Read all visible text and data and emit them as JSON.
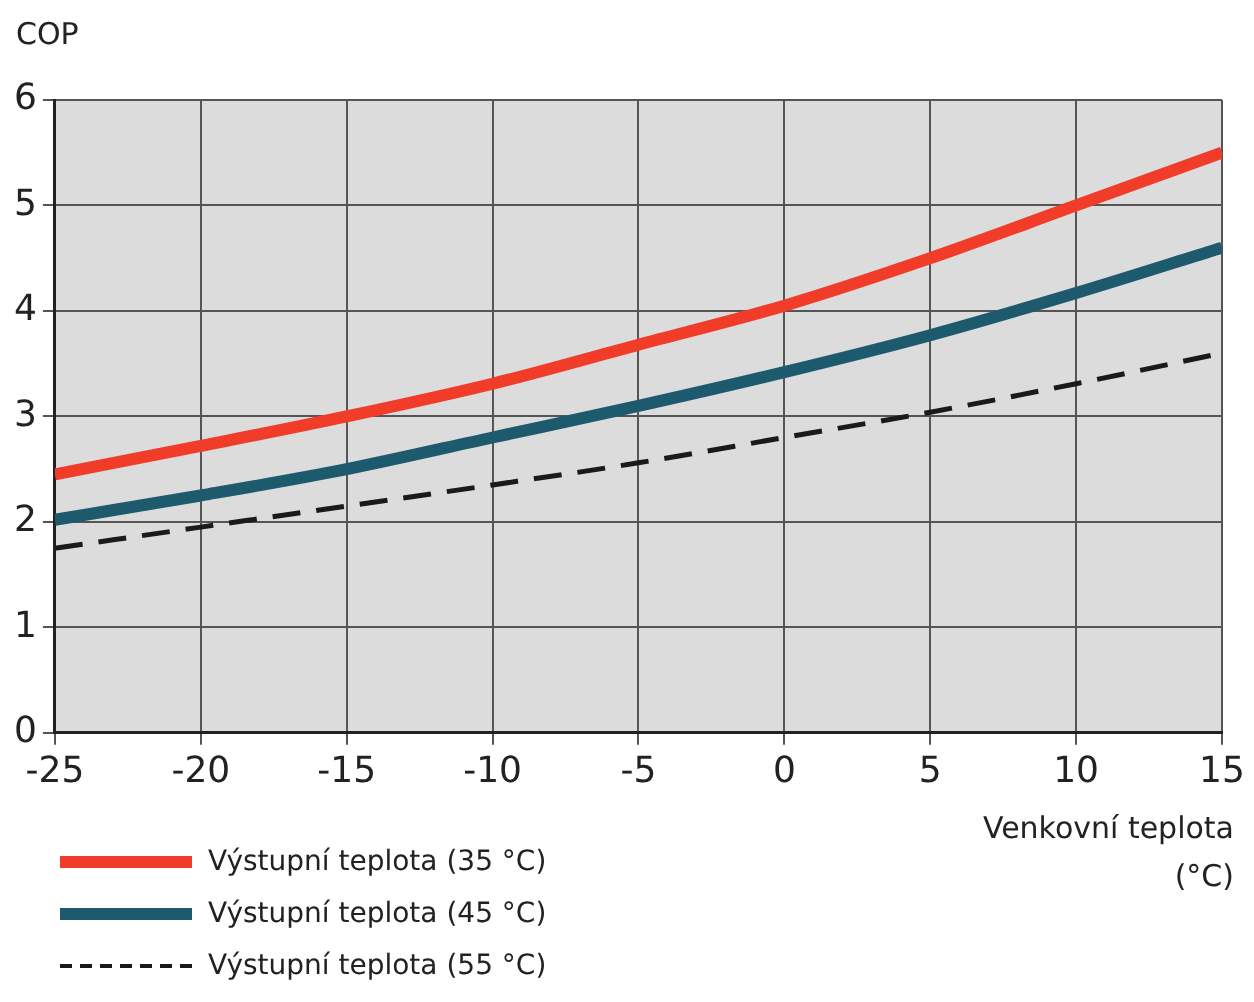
{
  "chart_data": {
    "type": "line",
    "ylabel": "COP",
    "xlabel": "Venkovní teplota (°C)",
    "x": [
      -25,
      -20,
      -15,
      -10,
      -5,
      0,
      5,
      10,
      15
    ],
    "xlim": [
      -25,
      15
    ],
    "xticks": [
      -25,
      -20,
      -15,
      -10,
      -5,
      0,
      5,
      10,
      15
    ],
    "ylim": [
      0,
      6
    ],
    "yticks": [
      0,
      1,
      2,
      3,
      4,
      5,
      6
    ],
    "grid": true,
    "legend": "bottom left",
    "marker": "none",
    "series": [
      {
        "name": "Výstupní teplota (35 °C)",
        "color": "#f03c28",
        "line_style": "solid",
        "values": [
          2.45,
          2.72,
          3.0,
          3.31,
          3.68,
          4.05,
          4.5,
          5.0,
          5.5
        ]
      },
      {
        "name": "Výstupní teplota (45 °C)",
        "color": "#1e5a6e",
        "line_style": "solid",
        "values": [
          2.02,
          2.25,
          2.5,
          2.8,
          3.1,
          3.42,
          3.77,
          4.17,
          4.6
        ]
      },
      {
        "name": "Výstupní teplota (55 °C)",
        "color": "#1a1a1a",
        "line_style": "dashed",
        "values": [
          1.75,
          1.95,
          2.15,
          2.35,
          2.56,
          2.8,
          3.04,
          3.31,
          3.6
        ]
      }
    ]
  }
}
